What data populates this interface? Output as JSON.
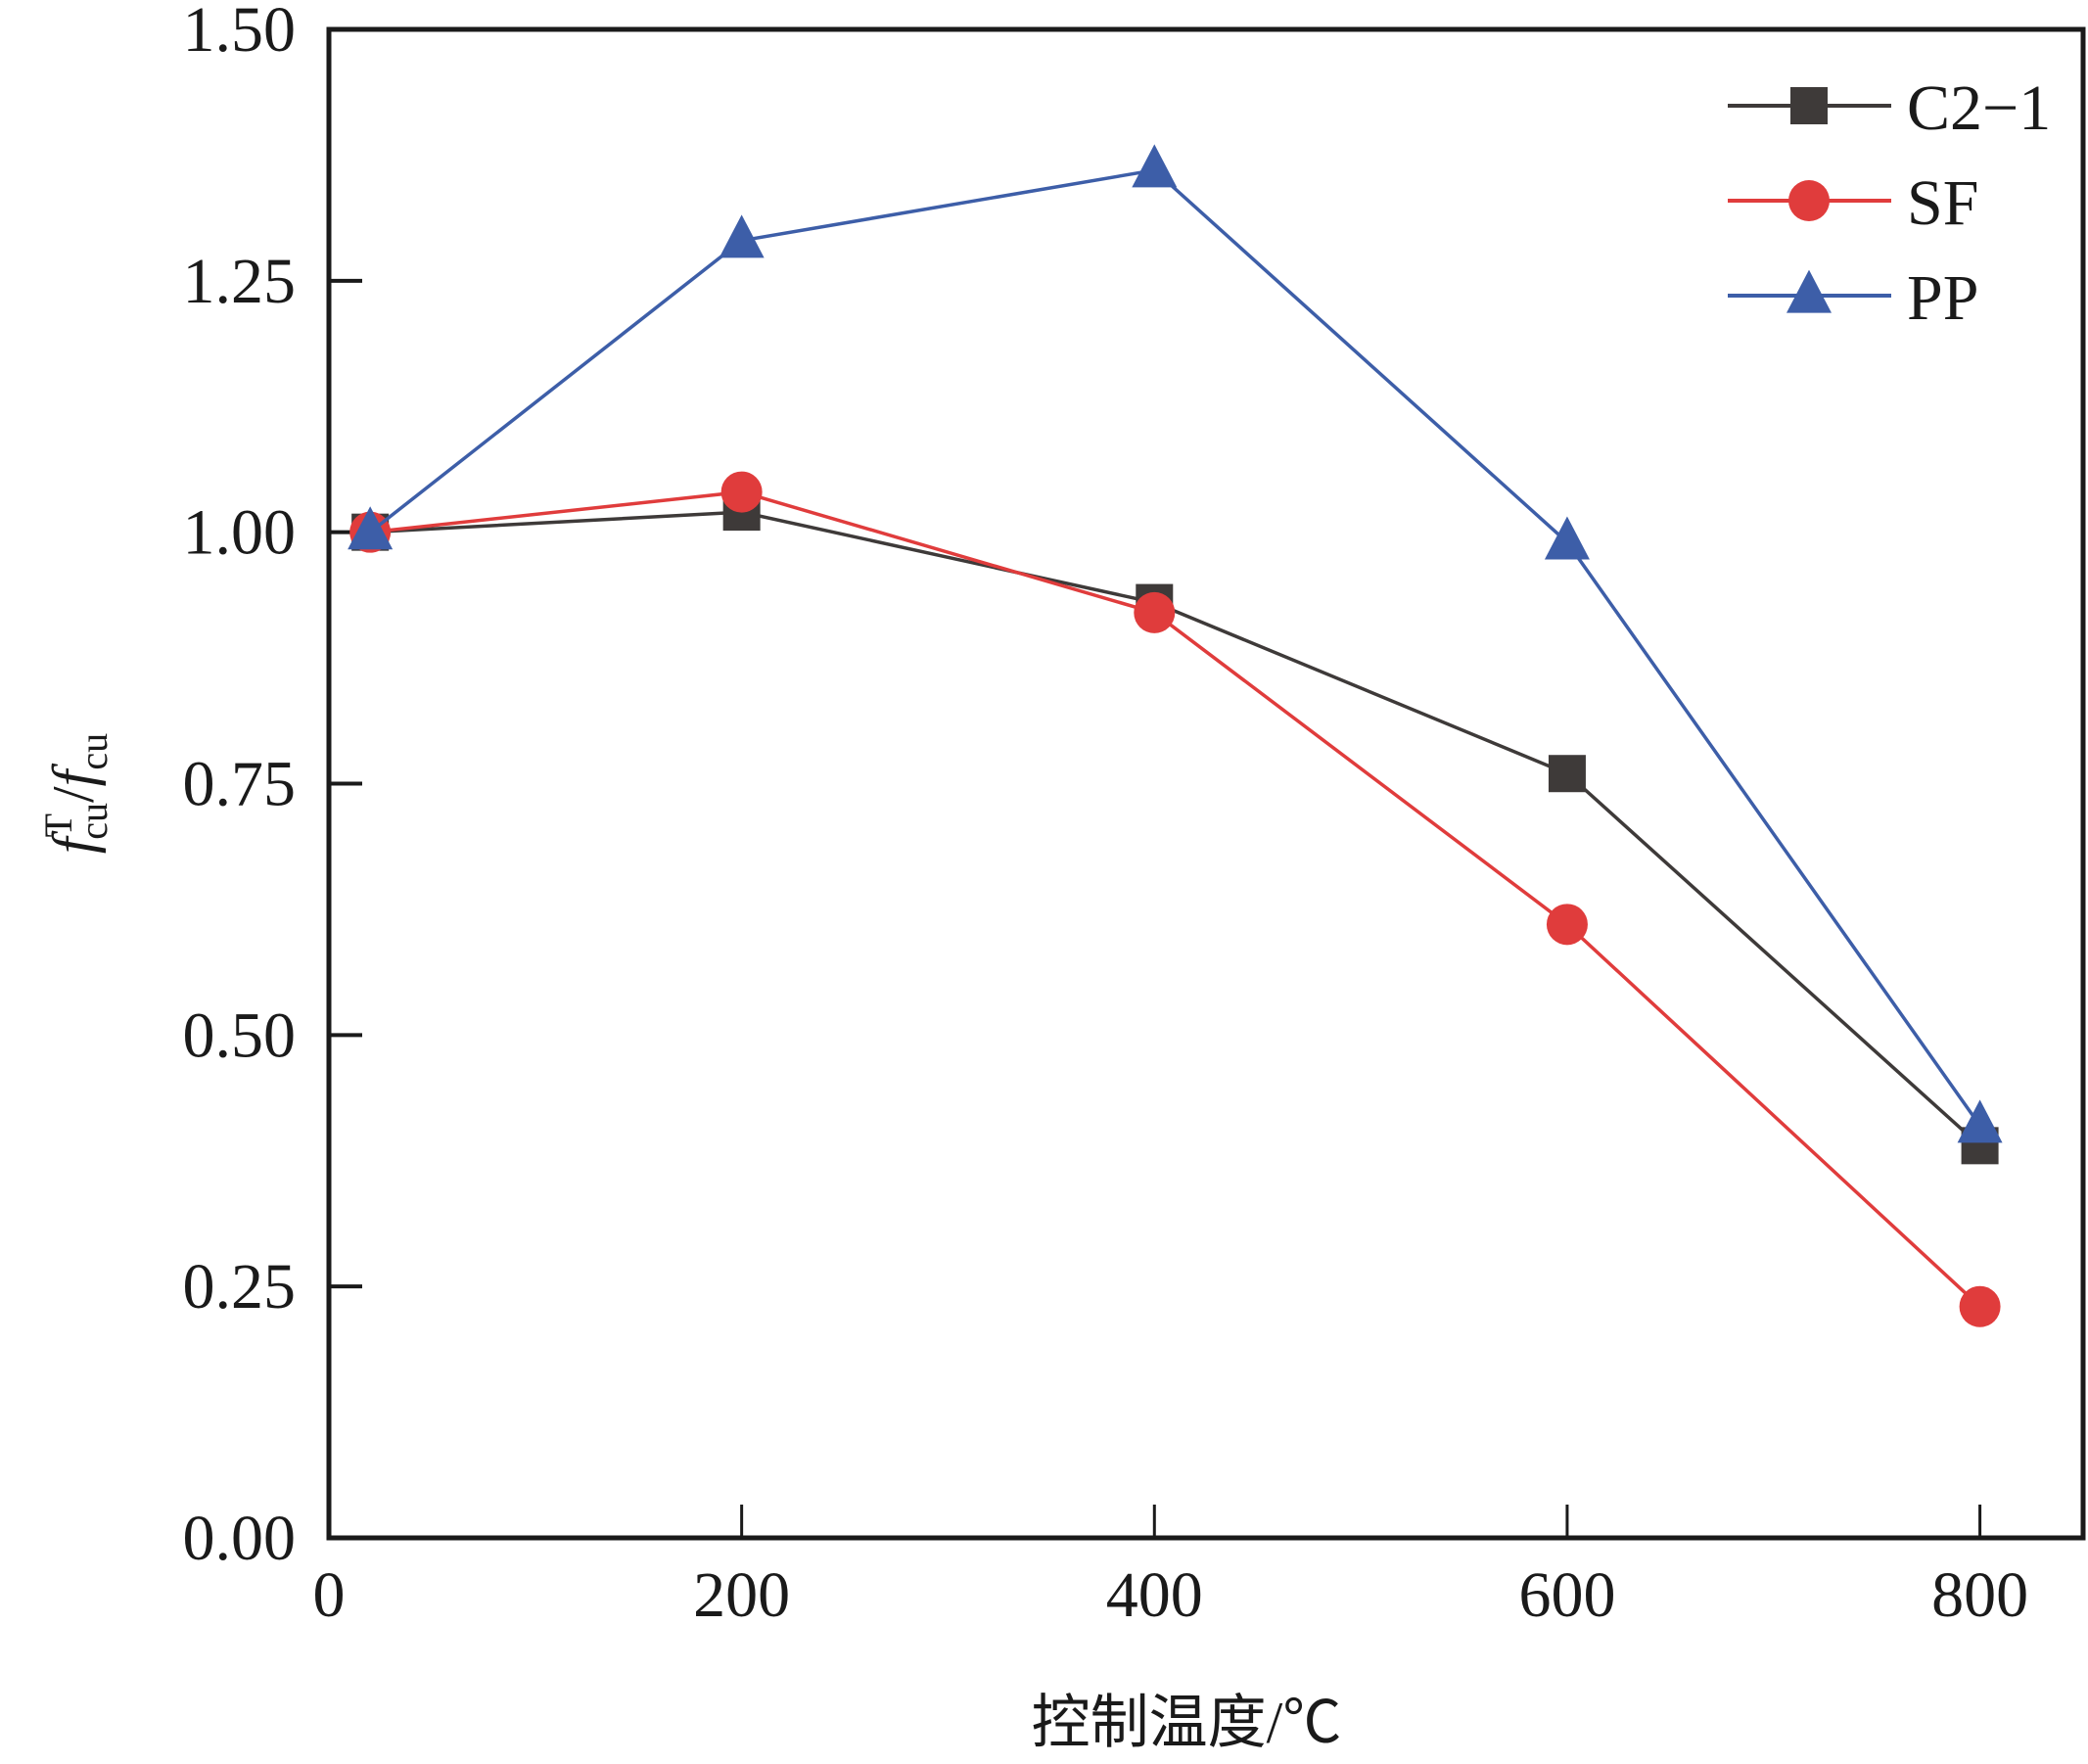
{
  "chart_data": {
    "type": "line",
    "title": "",
    "xlabel": "控制温度/℃",
    "ylabel": {
      "main": "f",
      "sup": "T",
      "sub": "cu",
      "sep": "/",
      "main2": "f",
      "sub2": "cu"
    },
    "xlim": [
      0,
      850
    ],
    "ylim": [
      0,
      1.5
    ],
    "x_ticks": [
      0,
      200,
      400,
      600,
      800
    ],
    "x_tick_labels": [
      "0",
      "200",
      "400",
      "600",
      "800"
    ],
    "y_ticks": [
      0,
      0.25,
      0.5,
      0.75,
      1.0,
      1.25,
      1.5
    ],
    "y_tick_labels": [
      "0.00",
      "0.25",
      "0.50",
      "0.75",
      "1.00",
      "1.25",
      "1.50"
    ],
    "grid": false,
    "legend_position": "top-right",
    "x": [
      20,
      200,
      400,
      600,
      800
    ],
    "series": [
      {
        "name": "C2−1",
        "color": "#3e3a39",
        "marker": "square",
        "values": [
          1.0,
          1.02,
          0.93,
          0.76,
          0.39
        ]
      },
      {
        "name": "SF",
        "color": "#e03c3c",
        "marker": "circle",
        "values": [
          1.0,
          1.04,
          0.92,
          0.61,
          0.23
        ]
      },
      {
        "name": "PP",
        "color": "#3d5ea8",
        "marker": "triangle",
        "values": [
          1.0,
          1.29,
          1.36,
          0.99,
          0.41
        ]
      }
    ]
  }
}
